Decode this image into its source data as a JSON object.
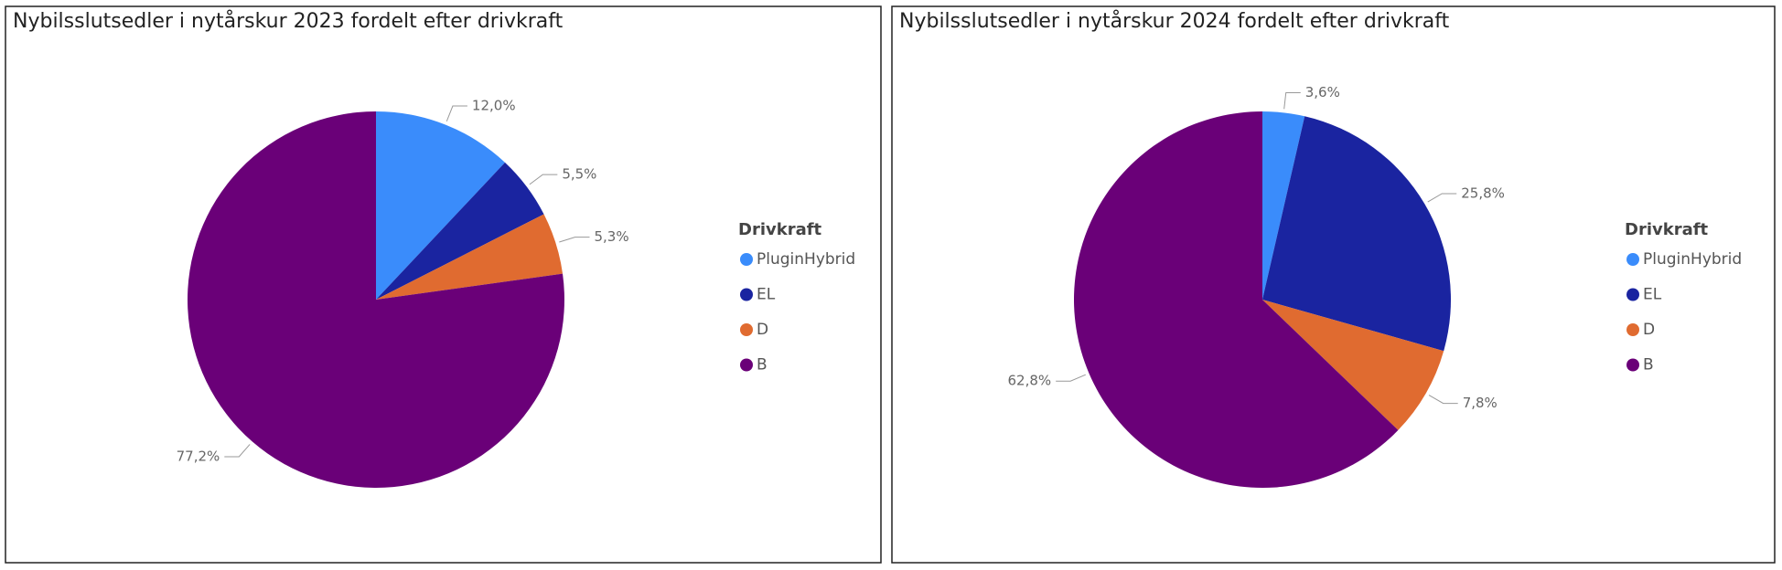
{
  "chart_data": [
    {
      "type": "pie",
      "title": "Nybilsslutsedler i nytårskur 2023 fordelt efter drivkraft",
      "legend_title": "Drivkraft",
      "categories": [
        "PluginHybrid",
        "EL",
        "D",
        "B"
      ],
      "values": [
        12.0,
        5.5,
        5.3,
        77.2
      ],
      "value_labels": [
        "12,0%",
        "5,5%",
        "5,3%",
        "77,2%"
      ],
      "colors": [
        "#3a8cfb",
        "#1a24a0",
        "#e06b30",
        "#6a0078"
      ]
    },
    {
      "type": "pie",
      "title": "Nybilsslutsedler i nytårskur 2024 fordelt efter drivkraft",
      "legend_title": "Drivkraft",
      "categories": [
        "PluginHybrid",
        "EL",
        "D",
        "B"
      ],
      "values": [
        3.6,
        25.8,
        7.8,
        62.8
      ],
      "value_labels": [
        "3,6%",
        "25,8%",
        "7,8%",
        "62,8%"
      ],
      "colors": [
        "#3a8cfb",
        "#1a24a0",
        "#e06b30",
        "#6a0078"
      ]
    }
  ]
}
